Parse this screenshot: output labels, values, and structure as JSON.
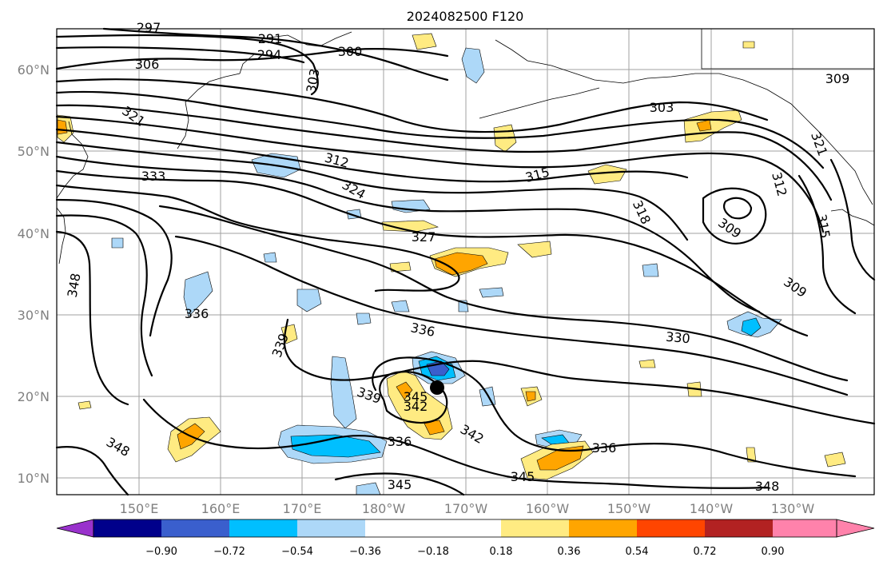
{
  "title": "2024082500 F120",
  "map": {
    "lat_labels": [
      "60°N",
      "50°N",
      "40°N",
      "30°N",
      "20°N",
      "10°N"
    ],
    "lon_labels": [
      "150°E",
      "160°E",
      "170°E",
      "180°W",
      "170°W",
      "160°W",
      "150°W",
      "140°W",
      "130°W"
    ],
    "contour_labels": [
      "297",
      "291",
      "294",
      "306",
      "300",
      "303",
      "309",
      "321",
      "303",
      "312",
      "324",
      "315",
      "333",
      "312",
      "321",
      "318",
      "309",
      "315",
      "327",
      "348",
      "336",
      "309",
      "336",
      "330",
      "339",
      "339",
      "345",
      "342",
      "336",
      "342",
      "336",
      "345",
      "348",
      "345",
      "348",
      "321",
      "321"
    ],
    "storm_marker": "black-dot",
    "colors": {
      "contour": "#000000",
      "grid": "#a0a0a0",
      "axis_label": "#808080"
    }
  },
  "colorbar": {
    "ticks": [
      "−0.90",
      "−0.72",
      "−0.54",
      "−0.36",
      "−0.18",
      "0.18",
      "0.36",
      "0.54",
      "0.72",
      "0.90"
    ],
    "colors": [
      "#9932cc",
      "#00008b",
      "#3a5fcd",
      "#00bfff",
      "#add8f8",
      "#ffffff",
      "#ffeb82",
      "#ffa500",
      "#ff4500",
      "#b22222",
      "#ff82ab"
    ],
    "extend": "both"
  }
}
